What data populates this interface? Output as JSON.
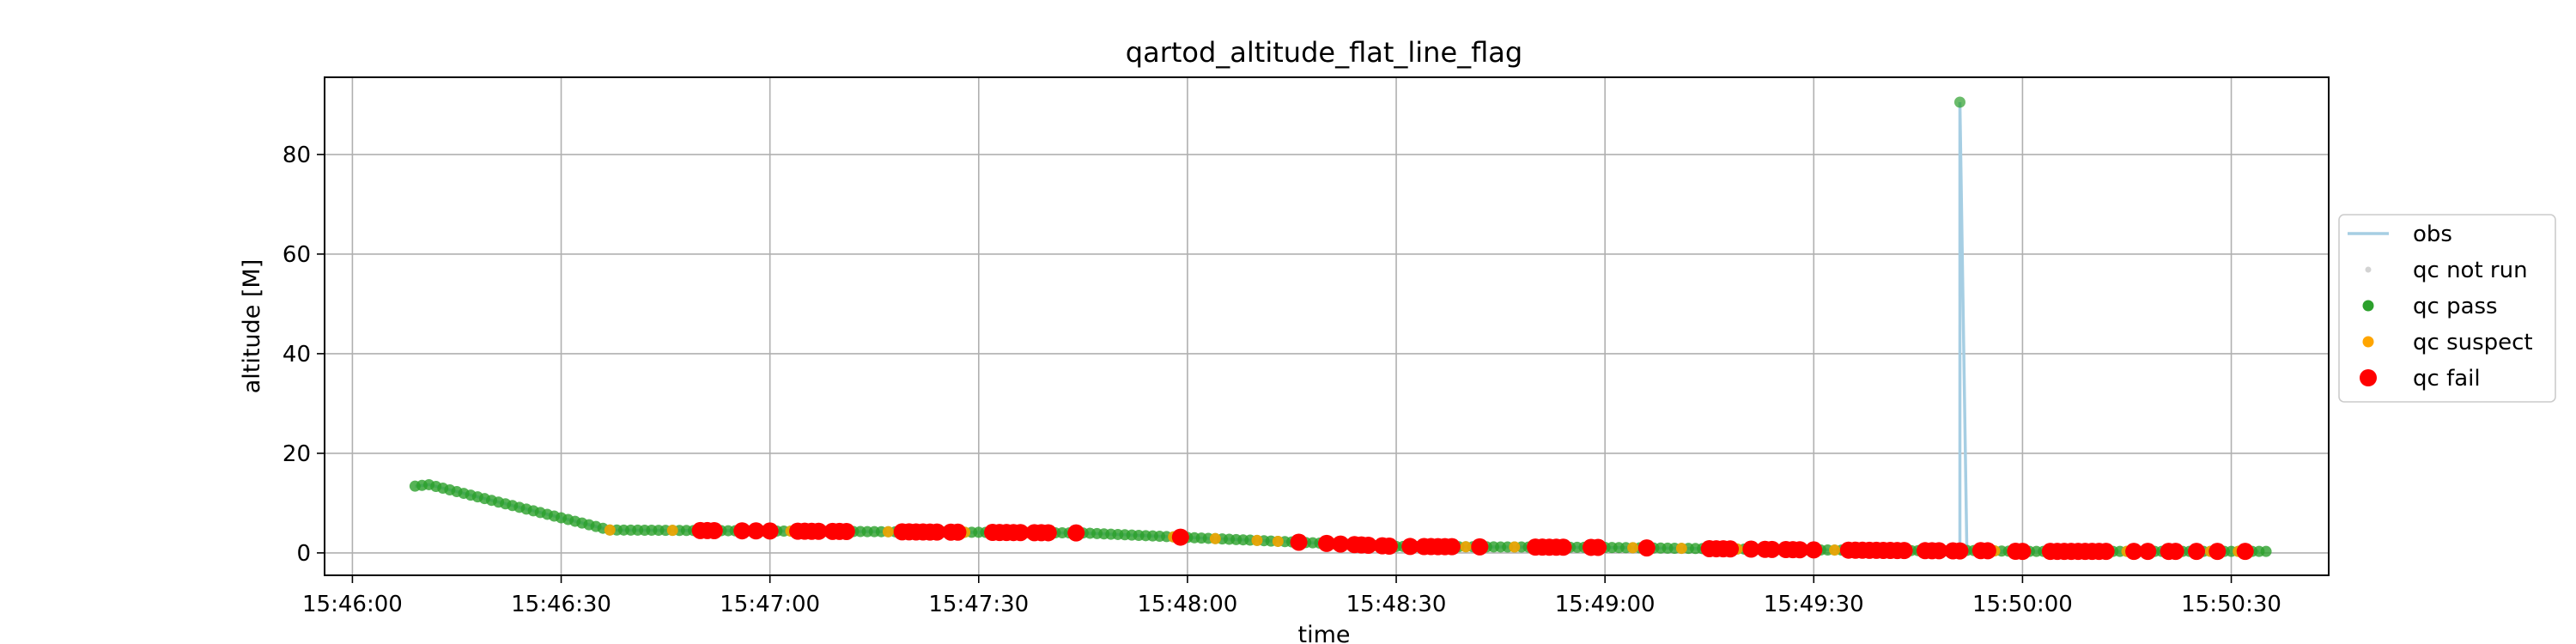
{
  "chart_data": {
    "type": "scatter",
    "title": "qartod_altitude_flat_line_flag",
    "xlabel": "time",
    "ylabel": "altitude [M]",
    "x_ticks": [
      "15:46:00",
      "15:46:30",
      "15:47:00",
      "15:47:30",
      "15:48:00",
      "15:48:30",
      "15:49:00",
      "15:49:30",
      "15:50:00",
      "15:50:30"
    ],
    "y_ticks": [
      0,
      20,
      40,
      60,
      80
    ],
    "xlim": [
      "15:45:56",
      "15:50:44"
    ],
    "ylim": [
      -4.5,
      95.5
    ],
    "grid": true,
    "legend_position": "center-right, outside plot",
    "legend": [
      {
        "label": "obs",
        "kind": "line",
        "color": "#a6cee3"
      },
      {
        "label": "qc not run",
        "kind": "marker",
        "color": "#d3d3d3"
      },
      {
        "label": "qc pass",
        "kind": "marker",
        "color": "#2ca02c"
      },
      {
        "label": "qc suspect",
        "kind": "marker",
        "color": "#ffa500"
      },
      {
        "label": "qc fail",
        "kind": "marker",
        "color": "#ff0000"
      }
    ],
    "obs_profile": [
      {
        "t": "15:46:09",
        "alt": 13.4
      },
      {
        "t": "15:46:11",
        "alt": 13.7
      },
      {
        "t": "15:46:37",
        "alt": 4.6
      },
      {
        "t": "15:47:45",
        "alt": 4.0
      },
      {
        "t": "15:48:00",
        "alt": 3.1
      },
      {
        "t": "15:48:30",
        "alt": 1.3
      },
      {
        "t": "15:49:00",
        "alt": 1.1
      },
      {
        "t": "15:49:30",
        "alt": 0.6
      },
      {
        "t": "15:49:51",
        "alt": 0.4
      },
      {
        "t": "15:49:51",
        "alt": 90.5
      },
      {
        "t": "15:49:52",
        "alt": 0.5
      },
      {
        "t": "15:50:00",
        "alt": 0.3
      },
      {
        "t": "15:50:34",
        "alt": 0.3
      }
    ],
    "qc_pass_range": {
      "start": "15:46:09",
      "end": "15:50:35"
    },
    "qc_pass_spike": {
      "t": "15:49:51",
      "alt": 90.5
    },
    "qc_suspect_times": [
      "15:46:37",
      "15:46:46",
      "15:46:52",
      "15:47:03",
      "15:47:11",
      "15:47:17",
      "15:47:28",
      "15:47:37",
      "15:47:58",
      "15:48:04",
      "15:48:10",
      "15:48:13",
      "15:48:16",
      "15:48:21",
      "15:48:25",
      "15:48:36",
      "15:48:40",
      "15:48:47",
      "15:48:51",
      "15:49:04",
      "15:49:11",
      "15:49:19",
      "15:49:24",
      "15:49:33",
      "15:49:43",
      "15:49:48",
      "15:49:56",
      "15:50:04",
      "15:50:15",
      "15:50:22",
      "15:50:27",
      "15:50:31"
    ],
    "qc_fail_times": [
      "15:46:50",
      "15:46:51",
      "15:46:52",
      "15:46:56",
      "15:46:58",
      "15:47:00",
      "15:47:04",
      "15:47:05",
      "15:47:06",
      "15:47:07",
      "15:47:09",
      "15:47:10",
      "15:47:11",
      "15:47:19",
      "15:47:20",
      "15:47:21",
      "15:47:22",
      "15:47:23",
      "15:47:24",
      "15:47:26",
      "15:47:27",
      "15:47:32",
      "15:47:33",
      "15:47:34",
      "15:47:35",
      "15:47:36",
      "15:47:38",
      "15:47:39",
      "15:47:40",
      "15:47:44",
      "15:47:59",
      "15:48:16",
      "15:48:20",
      "15:48:22",
      "15:48:24",
      "15:48:25",
      "15:48:26",
      "15:48:28",
      "15:48:29",
      "15:48:32",
      "15:48:34",
      "15:48:35",
      "15:48:36",
      "15:48:37",
      "15:48:38",
      "15:48:42",
      "15:48:50",
      "15:48:51",
      "15:48:52",
      "15:48:53",
      "15:48:54",
      "15:48:58",
      "15:48:59",
      "15:49:06",
      "15:49:15",
      "15:49:16",
      "15:49:17",
      "15:49:18",
      "15:49:21",
      "15:49:23",
      "15:49:24",
      "15:49:26",
      "15:49:27",
      "15:49:28",
      "15:49:30",
      "15:49:35",
      "15:49:36",
      "15:49:37",
      "15:49:38",
      "15:49:39",
      "15:49:40",
      "15:49:41",
      "15:49:42",
      "15:49:43",
      "15:49:46",
      "15:49:47",
      "15:49:48",
      "15:49:50",
      "15:49:51",
      "15:49:54",
      "15:49:55",
      "15:49:59",
      "15:50:00",
      "15:50:04",
      "15:50:05",
      "15:50:06",
      "15:50:07",
      "15:50:08",
      "15:50:09",
      "15:50:10",
      "15:50:11",
      "15:50:12",
      "15:50:16",
      "15:50:18",
      "15:50:21",
      "15:50:22",
      "15:50:25",
      "15:50:28",
      "15:50:32"
    ]
  }
}
